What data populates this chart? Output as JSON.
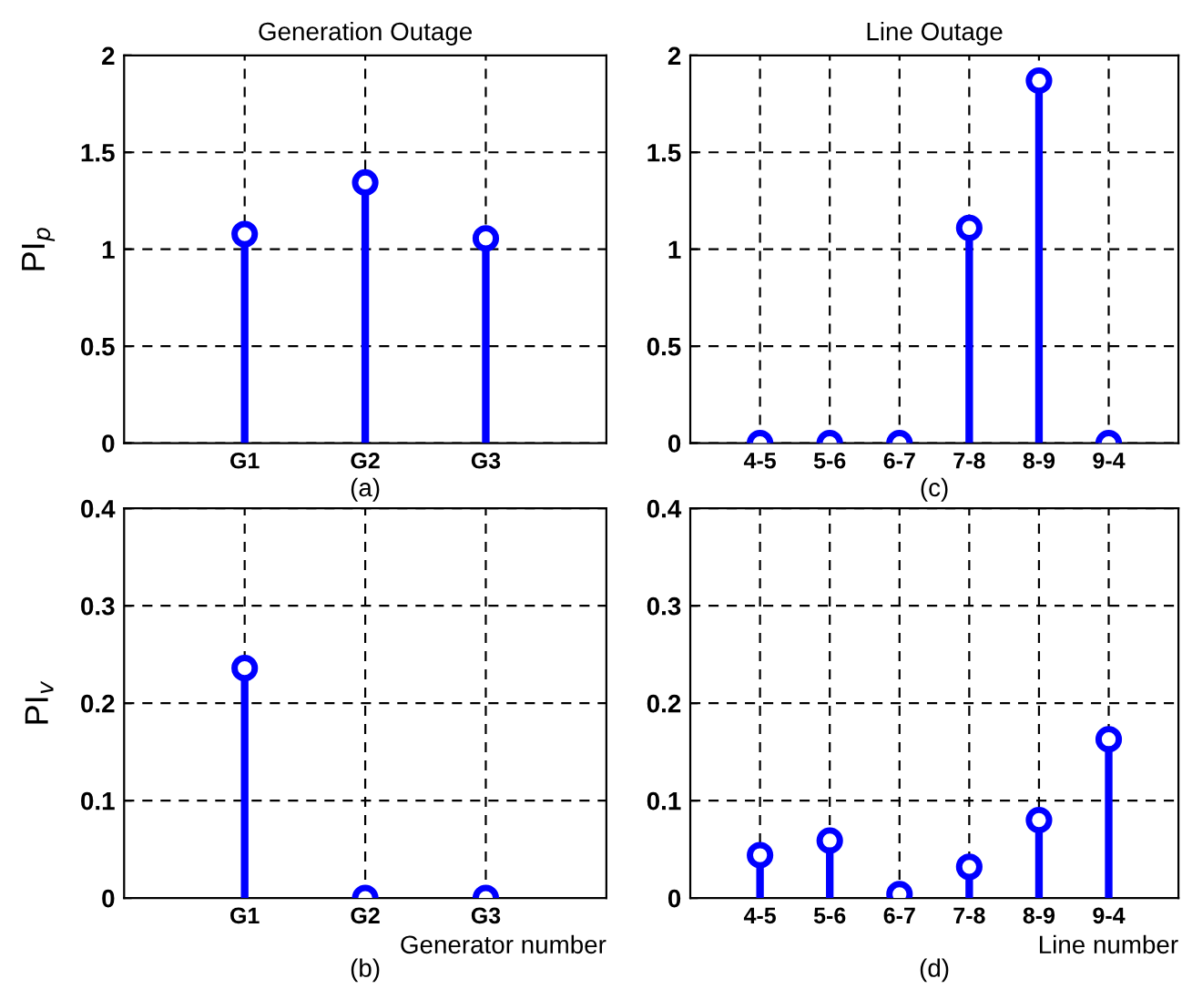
{
  "chart_data": [
    {
      "type": "lollipop",
      "title": "Generation Outage",
      "ylabel": "PI$_{p}$",
      "categories": [
        "G1",
        "G2",
        "G3"
      ],
      "values": [
        1.078,
        1.344,
        1.056
      ],
      "color": "#0000ff",
      "ylim": [
        0,
        2
      ],
      "yticks": [
        0,
        0.5,
        1,
        1.5,
        2
      ],
      "grid": true,
      "marker": "circle",
      "annotations": [
        "(a)"
      ]
    },
    {
      "type": "lollipop",
      "title": "Line Outage",
      "categories": [
        "4-5",
        "5-6",
        "6-7",
        "7-8",
        "8-9",
        "9-4"
      ],
      "values": [
        0,
        0,
        0,
        1.11,
        1.87,
        0
      ],
      "color": "#0000ff",
      "ylim": [
        0,
        2
      ],
      "yticks": [
        0,
        0.5,
        1,
        1.5,
        2
      ],
      "grid": true,
      "marker": "circle",
      "annotations": [
        "(c)"
      ]
    },
    {
      "type": "lollipop",
      "ylabel": "PI$_{v}$",
      "xlabel": "Generator number",
      "categories": [
        "G1",
        "G2",
        "G3"
      ],
      "values": [
        0.236,
        0,
        0
      ],
      "color": "#0000ff",
      "ylim": [
        0,
        0.4
      ],
      "yticks": [
        0,
        0.1,
        0.2,
        0.3,
        0.4
      ],
      "grid": true,
      "marker": "circle",
      "annotations": [
        "(b)"
      ]
    },
    {
      "type": "lollipop",
      "xlabel": "Line number",
      "categories": [
        "4-5",
        "5-6",
        "6-7",
        "7-8",
        "8-9",
        "9-4"
      ],
      "values": [
        0.044,
        0.059,
        0.004,
        0.032,
        0.08,
        0.163
      ],
      "color": "#0000ff",
      "ylim": [
        0,
        0.4
      ],
      "yticks": [
        0,
        0.1,
        0.2,
        0.3,
        0.4
      ],
      "grid": true,
      "marker": "circle",
      "annotations": [
        "(d)"
      ]
    }
  ]
}
